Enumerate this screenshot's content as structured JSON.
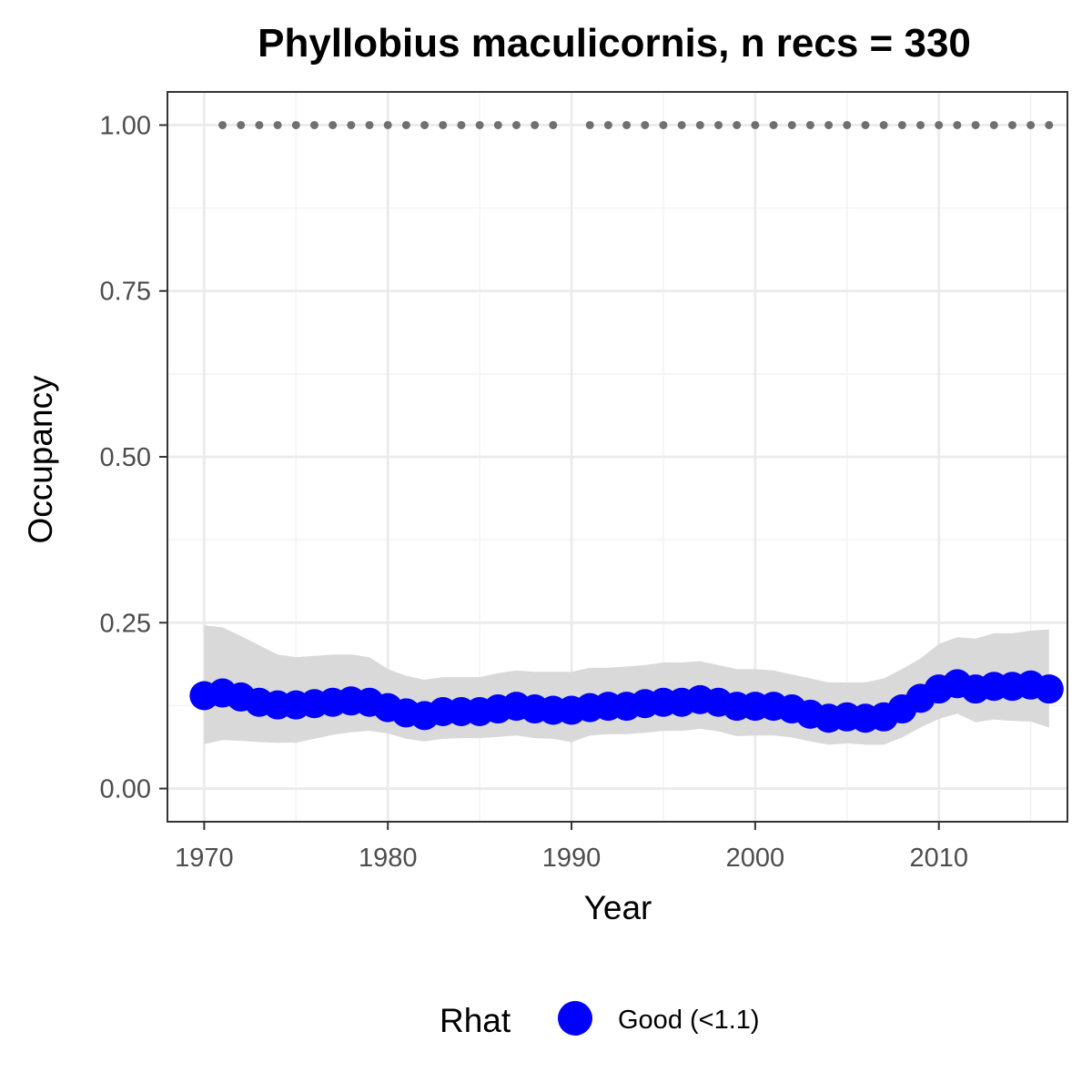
{
  "chart_data": {
    "type": "line",
    "title": "Phyllobius maculicornis, n recs = 330",
    "xlabel": "Year",
    "ylabel": "Occupancy",
    "xlim": [
      1968,
      2017
    ],
    "ylim": [
      -0.05,
      1.05
    ],
    "x_ticks": [
      1970,
      1980,
      1990,
      2000,
      2010
    ],
    "y_ticks": [
      0.0,
      0.25,
      0.5,
      0.75,
      1.0
    ],
    "y_tick_labels": [
      "0.00",
      "0.25",
      "0.50",
      "0.75",
      "1.00"
    ],
    "grid": true,
    "legend_position": "bottom",
    "legend": {
      "title": "Rhat",
      "label": "Good (<1.1)"
    },
    "colors": {
      "points": "#0000ff",
      "ribbon": "#d9d9d9",
      "records": "#707070",
      "grid_major": "#ebebeb",
      "grid_minor": "#f2f2f2",
      "panel_border": "#333333"
    },
    "series": [
      {
        "name": "Good (<1.1)",
        "x": [
          1970,
          1971,
          1972,
          1973,
          1974,
          1975,
          1976,
          1977,
          1978,
          1979,
          1980,
          1981,
          1982,
          1983,
          1984,
          1985,
          1986,
          1987,
          1988,
          1989,
          1990,
          1991,
          1992,
          1993,
          1994,
          1995,
          1996,
          1997,
          1998,
          1999,
          2000,
          2001,
          2002,
          2003,
          2004,
          2005,
          2006,
          2007,
          2008,
          2009,
          2010,
          2011,
          2012,
          2013,
          2014,
          2015,
          2016
        ],
        "y": [
          0.14,
          0.144,
          0.138,
          0.13,
          0.126,
          0.126,
          0.128,
          0.13,
          0.132,
          0.13,
          0.122,
          0.114,
          0.11,
          0.116,
          0.116,
          0.116,
          0.12,
          0.124,
          0.12,
          0.118,
          0.118,
          0.122,
          0.124,
          0.124,
          0.128,
          0.13,
          0.13,
          0.134,
          0.13,
          0.124,
          0.124,
          0.124,
          0.12,
          0.112,
          0.106,
          0.108,
          0.106,
          0.108,
          0.12,
          0.136,
          0.15,
          0.158,
          0.15,
          0.154,
          0.154,
          0.156,
          0.15
        ],
        "lower": [
          0.067,
          0.073,
          0.072,
          0.07,
          0.069,
          0.069,
          0.075,
          0.081,
          0.085,
          0.087,
          0.083,
          0.075,
          0.071,
          0.075,
          0.076,
          0.076,
          0.078,
          0.08,
          0.076,
          0.075,
          0.07,
          0.08,
          0.082,
          0.082,
          0.084,
          0.087,
          0.087,
          0.09,
          0.086,
          0.079,
          0.08,
          0.08,
          0.077,
          0.071,
          0.066,
          0.068,
          0.066,
          0.066,
          0.077,
          0.092,
          0.105,
          0.113,
          0.1,
          0.104,
          0.102,
          0.101,
          0.092
        ],
        "upper": [
          0.246,
          0.243,
          0.23,
          0.216,
          0.202,
          0.198,
          0.2,
          0.202,
          0.202,
          0.198,
          0.18,
          0.17,
          0.164,
          0.168,
          0.168,
          0.168,
          0.174,
          0.178,
          0.176,
          0.176,
          0.176,
          0.182,
          0.182,
          0.184,
          0.186,
          0.19,
          0.19,
          0.192,
          0.186,
          0.18,
          0.18,
          0.178,
          0.172,
          0.166,
          0.16,
          0.16,
          0.16,
          0.166,
          0.18,
          0.196,
          0.218,
          0.228,
          0.226,
          0.234,
          0.234,
          0.238,
          0.24
        ]
      }
    ],
    "record_years": [
      1971,
      1972,
      1973,
      1974,
      1975,
      1976,
      1977,
      1978,
      1979,
      1980,
      1981,
      1982,
      1983,
      1984,
      1985,
      1986,
      1987,
      1988,
      1989,
      1991,
      1992,
      1993,
      1994,
      1995,
      1996,
      1997,
      1998,
      1999,
      2000,
      2001,
      2002,
      2003,
      2004,
      2005,
      2006,
      2007,
      2008,
      2009,
      2010,
      2011,
      2012,
      2013,
      2014,
      2015,
      2016
    ],
    "record_value": 1.0
  }
}
